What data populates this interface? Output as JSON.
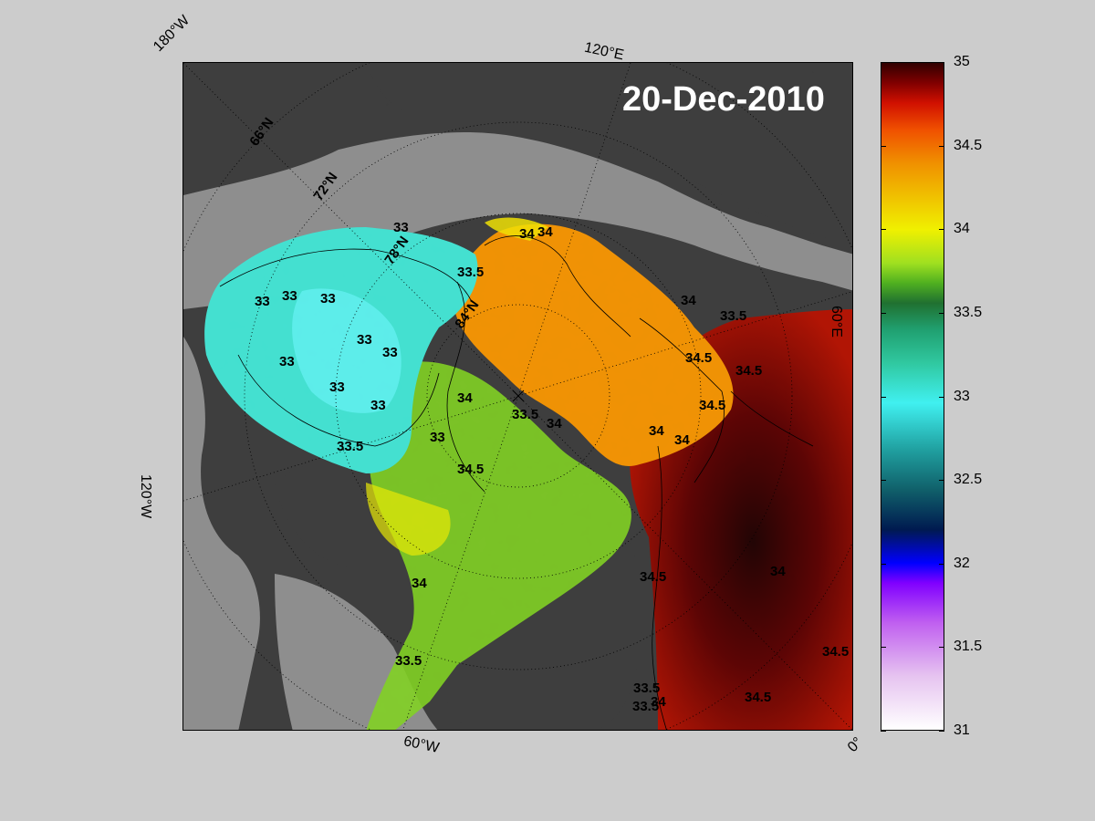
{
  "date_label": "20-Dec-2010",
  "edge_labels": {
    "top_left": "180°W",
    "top_right": "120°E",
    "right": "60°E",
    "left": "120°W",
    "bottom_left": "60°W",
    "bottom_right": "0°"
  },
  "latitude_labels": [
    "66°N",
    "72°N",
    "78°N",
    "84°N"
  ],
  "colorbar": {
    "ticks": [
      "35",
      "34.5",
      "34",
      "33.5",
      "33",
      "32.5",
      "32",
      "31.5",
      "31"
    ],
    "range": [
      31,
      35
    ]
  },
  "contour_labels": {
    "c1": "33",
    "c2": "34",
    "c3": "34",
    "c4": "33.5",
    "c5": "33",
    "c6": "33",
    "c7": "33",
    "c8": "34",
    "c9": "33.5",
    "c10": "33",
    "c11": "33",
    "c12": "33",
    "c13": "33",
    "c14": "33",
    "c15": "34",
    "c16": "33.5",
    "c17": "34",
    "c18": "33",
    "c19": "33.5",
    "c20": "34",
    "c21": "33.5",
    "c22": "34.5",
    "c23": "34.5",
    "c24": "34.5",
    "c25": "34",
    "c26": "34",
    "c27": "34.5",
    "c28": "34",
    "c29": "33.5",
    "c30": "34.5",
    "c31": "33.5",
    "c32": "34",
    "c33": "34.5",
    "c34": "34.5"
  },
  "colors": {
    "land": "#3a3a3a",
    "no_data": "#8c8c8c",
    "background": "#cccccc",
    "date_text": "#ffffff"
  }
}
